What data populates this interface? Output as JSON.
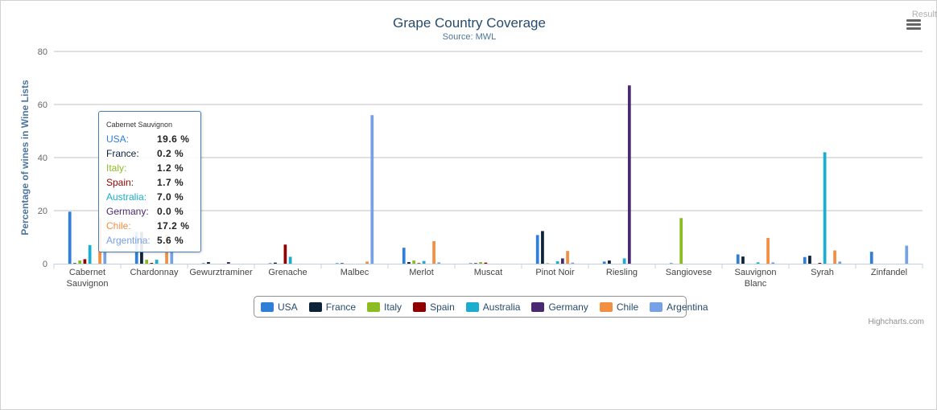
{
  "page": {
    "corner_tab": "Result"
  },
  "chart_data": {
    "type": "bar",
    "title": "Grape Country Coverage",
    "subtitle": "Source: MWL",
    "ylabel": "Percentage of wines in Wine Lists",
    "ylim": [
      0,
      80
    ],
    "yticks": [
      0,
      20,
      40,
      60,
      80
    ],
    "grid": true,
    "legend_position": "bottom-center",
    "categories": [
      "Cabernet Sauvignon",
      "Chardonnay",
      "Gewurztraminer",
      "Grenache",
      "Malbec",
      "Merlot",
      "Muscat",
      "Pinot Noir",
      "Riesling",
      "Sangiovese",
      "Sauvignon Blanc",
      "Syrah",
      "Zinfandel"
    ],
    "category_lines": [
      [
        "Cabernet",
        "Sauvignon"
      ],
      [
        "Chardonnay"
      ],
      [
        "Gewurztraminer"
      ],
      [
        "Grenache"
      ],
      [
        "Malbec"
      ],
      [
        "Merlot"
      ],
      [
        "Muscat"
      ],
      [
        "Pinot Noir"
      ],
      [
        "Riesling"
      ],
      [
        "Sangiovese"
      ],
      [
        "Sauvignon",
        "Blanc"
      ],
      [
        "Syrah"
      ],
      [
        "Zinfandel"
      ]
    ],
    "series": [
      {
        "name": "USA",
        "color": "#2f7ed8",
        "values": [
          19.6,
          12.0,
          0.2,
          0.2,
          0.2,
          6.0,
          0.2,
          10.8,
          0.8,
          0.2,
          3.5,
          2.5,
          4.5
        ]
      },
      {
        "name": "France",
        "color": "#0d233a",
        "values": [
          0.2,
          12.0,
          0.6,
          0.4,
          0.2,
          0.6,
          0.2,
          12.3,
          1.2,
          0.0,
          2.7,
          3.0,
          0.0
        ]
      },
      {
        "name": "Italy",
        "color": "#8bbc21",
        "values": [
          1.2,
          1.5,
          0.0,
          0.0,
          0.0,
          1.2,
          0.6,
          0.2,
          0.0,
          17.2,
          0.0,
          0.0,
          0.0
        ]
      },
      {
        "name": "Spain",
        "color": "#910000",
        "values": [
          1.7,
          0.3,
          0.0,
          7.2,
          0.0,
          0.2,
          0.4,
          0.0,
          0.0,
          0.0,
          0.0,
          0.3,
          0.0
        ]
      },
      {
        "name": "Australia",
        "color": "#1aadce",
        "values": [
          7.0,
          1.5,
          0.0,
          2.6,
          0.0,
          1.0,
          0.0,
          0.9,
          2.0,
          0.0,
          0.5,
          42.0,
          0.0
        ]
      },
      {
        "name": "Germany",
        "color": "#492970",
        "values": [
          0.0,
          0.0,
          0.6,
          0.0,
          0.0,
          0.0,
          0.0,
          2.0,
          67.2,
          0.0,
          0.0,
          0.0,
          0.0
        ]
      },
      {
        "name": "Chile",
        "color": "#f28f43",
        "values": [
          17.2,
          11.0,
          0.0,
          0.0,
          0.8,
          8.5,
          0.0,
          4.8,
          0.0,
          0.0,
          9.7,
          5.0,
          0.0
        ]
      },
      {
        "name": "Argentina",
        "color": "#77a1e5",
        "values": [
          5.6,
          5.0,
          0.0,
          0.0,
          56.0,
          0.5,
          0.0,
          0.4,
          0.0,
          0.0,
          0.5,
          0.8,
          6.8
        ]
      }
    ]
  },
  "tooltip": {
    "category": "Cabernet Sauvignon",
    "rows": [
      {
        "name": "USA:",
        "value": "19.6 %",
        "color": "#2f7ed8"
      },
      {
        "name": "France:",
        "value": "0.2 %",
        "color": "#0d233a"
      },
      {
        "name": "Italy:",
        "value": "1.2 %",
        "color": "#8bbc21"
      },
      {
        "name": "Spain:",
        "value": "1.7 %",
        "color": "#910000"
      },
      {
        "name": "Australia:",
        "value": "7.0 %",
        "color": "#1aadce"
      },
      {
        "name": "Germany:",
        "value": "0.0 %",
        "color": "#492970"
      },
      {
        "name": "Chile:",
        "value": "17.2 %",
        "color": "#f28f43"
      },
      {
        "name": "Argentina:",
        "value": "5.6 %",
        "color": "#77a1e5"
      }
    ]
  },
  "credits": "Highcharts.com",
  "icons": {
    "menu": "hamburger-menu-icon"
  }
}
